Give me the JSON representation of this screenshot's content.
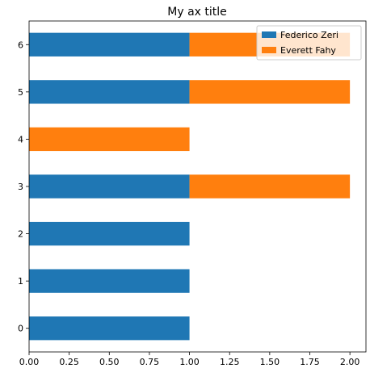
{
  "chart_data": {
    "type": "bar",
    "orientation": "horizontal",
    "stacked": true,
    "title": "My ax title",
    "xlabel": "",
    "ylabel": "",
    "categories": [
      "0",
      "1",
      "2",
      "3",
      "4",
      "5",
      "6"
    ],
    "series": [
      {
        "name": "Federico Zeri",
        "color": "#1f77b4",
        "values": [
          1,
          1,
          1,
          1,
          0,
          1,
          1
        ]
      },
      {
        "name": "Everett Fahy",
        "color": "#ff7f0e",
        "values": [
          0,
          0,
          0,
          1,
          1,
          1,
          1
        ]
      }
    ],
    "xlim": [
      0,
      2.1
    ],
    "xticks": [
      0,
      0.25,
      0.5,
      0.75,
      1.0,
      1.25,
      1.5,
      1.75,
      2.0
    ],
    "xtick_labels": [
      "0.00",
      "0.25",
      "0.50",
      "0.75",
      "1.00",
      "1.25",
      "1.50",
      "1.75",
      "2.00"
    ],
    "grid": false,
    "legend": "top-right"
  }
}
